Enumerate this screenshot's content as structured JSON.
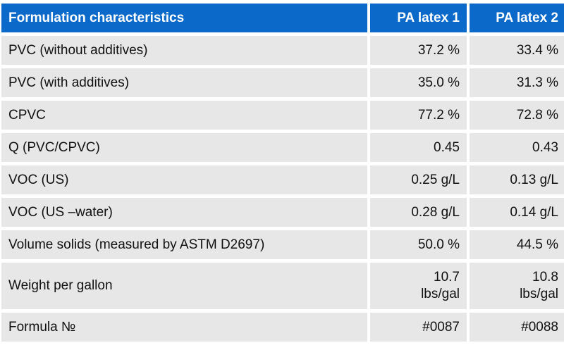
{
  "header": {
    "col1": "Formulation characteristics",
    "col2": "PA latex 1",
    "col3": "PA latex 2"
  },
  "rows": [
    {
      "label": "PVC (without additives)",
      "v1": "37.2 %",
      "v2": "33.4 %"
    },
    {
      "label": "PVC (with additives)",
      "v1": "35.0 %",
      "v2": "31.3 %"
    },
    {
      "label": "CPVC",
      "v1": "77.2 %",
      "v2": "72.8 %"
    },
    {
      "label": "Q (PVC/CPVC)",
      "v1": "0.45",
      "v2": "0.43"
    },
    {
      "label": "VOC (US)",
      "v1": "0.25 g/L",
      "v2": "0.13 g/L"
    },
    {
      "label": "VOC (US –water)",
      "v1": "0.28 g/L",
      "v2": "0.14 g/L"
    },
    {
      "label": "Volume solids (measured by ASTM D2697)",
      "v1": "50.0 %",
      "v2": "44.5 %"
    },
    {
      "label": "Weight per gallon",
      "v1": "10.7\nlbs/gal",
      "v2": "10.8\nlbs/gal"
    },
    {
      "label": "Formula №",
      "v1": "#0087",
      "v2": "#0088"
    }
  ]
}
